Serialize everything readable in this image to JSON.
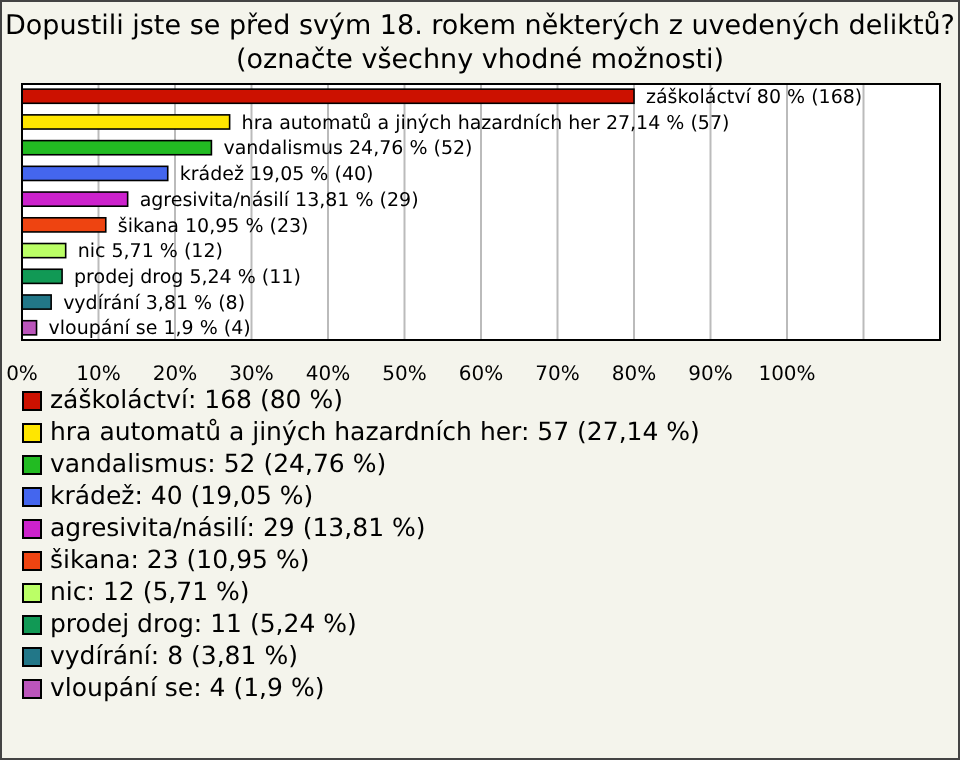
{
  "chart_data": {
    "type": "bar",
    "orientation": "horizontal",
    "title": "Dopustili jste se před svým 18. rokem některých z uvedených deliktů?",
    "subtitle": "(označte všechny vhodné možnosti)",
    "categories": [
      null,
      null,
      null,
      null,
      null,
      null,
      null,
      null,
      null,
      null
    ],
    "series": [
      {
        "name": "záškoláctví: 168 (80 %)",
        "color": "#cc1100",
        "values": [
          80,
          null,
          null,
          null,
          null,
          null,
          null,
          null,
          null,
          null
        ],
        "value_labels": [
          "záškoláctví 80 % (168)",
          null,
          null,
          null,
          null,
          null,
          null,
          null,
          null,
          null
        ]
      },
      {
        "name": "hra automatů a jiných hazardních her: 57 (27,14 %)",
        "color": "#ffe600",
        "values": [
          null,
          27.14,
          null,
          null,
          null,
          null,
          null,
          null,
          null,
          null
        ],
        "value_labels": [
          null,
          "hra automatů a jiných hazardních her 27,14 % (57)",
          null,
          null,
          null,
          null,
          null,
          null,
          null,
          null
        ]
      },
      {
        "name": "vandalismus: 52 (24,76 %)",
        "color": "#22bb22",
        "values": [
          null,
          null,
          24.76,
          null,
          null,
          null,
          null,
          null,
          null,
          null
        ],
        "value_labels": [
          null,
          null,
          "vandalismus 24,76 % (52)",
          null,
          null,
          null,
          null,
          null,
          null,
          null
        ]
      },
      {
        "name": "krádež: 40 (19,05 %)",
        "color": "#4466ee",
        "values": [
          null,
          null,
          null,
          19.05,
          null,
          null,
          null,
          null,
          null,
          null
        ],
        "value_labels": [
          null,
          null,
          null,
          "krádež 19,05 % (40)",
          null,
          null,
          null,
          null,
          null,
          null
        ]
      },
      {
        "name": "agresivita/násilí: 29 (13,81 %)",
        "color": "#cc22cc",
        "values": [
          null,
          null,
          null,
          null,
          13.81,
          null,
          null,
          null,
          null,
          null
        ],
        "value_labels": [
          null,
          null,
          null,
          null,
          "agresivita/násilí 13,81 % (29)",
          null,
          null,
          null,
          null,
          null
        ]
      },
      {
        "name": "šikana: 23 (10,95 %)",
        "color": "#ee4411",
        "values": [
          null,
          null,
          null,
          null,
          null,
          10.95,
          null,
          null,
          null,
          null
        ],
        "value_labels": [
          null,
          null,
          null,
          null,
          null,
          "šikana 10,95 % (23)",
          null,
          null,
          null,
          null
        ]
      },
      {
        "name": "nic: 12 (5,71 %)",
        "color": "#bbff66",
        "values": [
          null,
          null,
          null,
          null,
          null,
          null,
          5.71,
          null,
          null,
          null
        ],
        "value_labels": [
          null,
          null,
          null,
          null,
          null,
          null,
          "nic 5,71 % (12)",
          null,
          null,
          null
        ]
      },
      {
        "name": "prodej drog: 11 (5,24 %)",
        "color": "#119955",
        "values": [
          null,
          null,
          null,
          null,
          null,
          null,
          null,
          5.24,
          null,
          null
        ],
        "value_labels": [
          null,
          null,
          null,
          null,
          null,
          null,
          null,
          "prodej drog 5,24 % (11)",
          null,
          null
        ]
      },
      {
        "name": "vydírání: 8 (3,81 %)",
        "color": "#227788",
        "values": [
          null,
          null,
          null,
          null,
          null,
          null,
          null,
          null,
          3.81,
          null
        ],
        "value_labels": [
          null,
          null,
          null,
          null,
          null,
          null,
          null,
          null,
          "vydírání 3,81 % (8)",
          null
        ]
      },
      {
        "name": "vloupání se: 4 (1,9 %)",
        "color": "#bb55bb",
        "values": [
          null,
          null,
          null,
          null,
          null,
          null,
          null,
          null,
          null,
          1.9
        ],
        "value_labels": [
          null,
          null,
          null,
          null,
          null,
          null,
          null,
          null,
          null,
          "vloupání se 1,9 % (4)"
        ]
      }
    ],
    "xlim": [
      0,
      120
    ],
    "xticks": [
      {
        "value": 0,
        "label": "0%"
      },
      {
        "value": 10,
        "label": "10%"
      },
      {
        "value": 20,
        "label": "20%"
      },
      {
        "value": 30,
        "label": "30%"
      },
      {
        "value": 40,
        "label": "40%"
      },
      {
        "value": 50,
        "label": "50%"
      },
      {
        "value": 60,
        "label": "60%"
      },
      {
        "value": 70,
        "label": "70%"
      },
      {
        "value": 80,
        "label": "80%"
      },
      {
        "value": 90,
        "label": "90%"
      },
      {
        "value": 100,
        "label": "100%"
      },
      {
        "value": 110,
        "label": null
      }
    ],
    "tick_labels": "x",
    "grid": "x",
    "legend": "bottom"
  }
}
